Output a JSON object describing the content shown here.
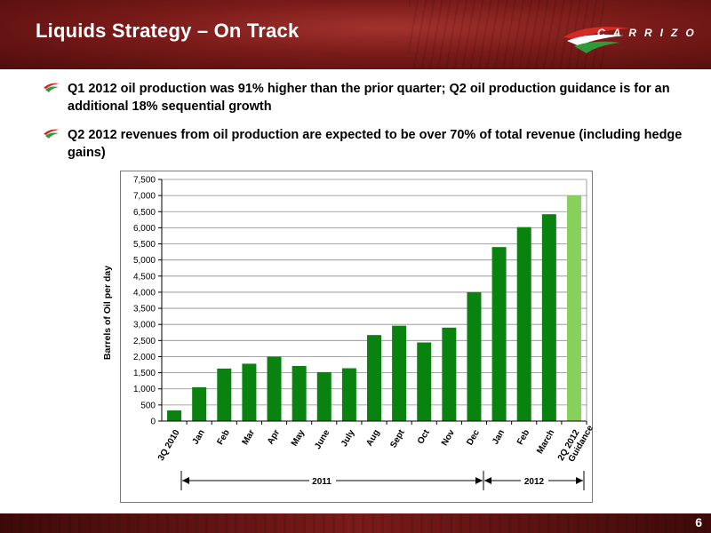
{
  "header": {
    "title": "Liquids Strategy – On Track",
    "logo_text": "CARRIZO"
  },
  "bullets": [
    "Q1 2012 oil production was 91% higher than the prior quarter; Q2 oil production guidance is for an additional 18% sequential growth",
    "Q2 2012 revenues from oil production are expected to be over 70% of total revenue (including hedge gains)"
  ],
  "colors": {
    "bar": "#0a820f",
    "bar_highlight": "#88d05c",
    "accent": "#7a1b19"
  },
  "chart_data": {
    "type": "bar",
    "ylabel": "Barrels of Oil per day",
    "ylim": [
      0,
      7500
    ],
    "yticks": [
      0,
      500,
      1000,
      1500,
      2000,
      2500,
      3000,
      3500,
      4000,
      4500,
      5000,
      5500,
      6000,
      6500,
      7000,
      7500
    ],
    "ytick_labels": [
      "0",
      "500",
      "1,000",
      "1,500",
      "2,000",
      "2,500",
      "3,000",
      "3,500",
      "4,000",
      "4,500",
      "5,000",
      "5,500",
      "6,000",
      "6,500",
      "7,000",
      "7,500"
    ],
    "categories": [
      "3Q 2010",
      "Jan",
      "Feb",
      "Mar",
      "Apr",
      "May",
      "June",
      "July",
      "Aug",
      "Sept",
      "Oct",
      "Nov",
      "Dec",
      "Jan",
      "Feb",
      "March",
      "2Q 2012 Guidance"
    ],
    "values": [
      330,
      1050,
      1630,
      1780,
      2000,
      1710,
      1520,
      1640,
      2670,
      2960,
      2440,
      2900,
      4000,
      5400,
      6020,
      6420,
      7000
    ],
    "highlight_index": 16,
    "grid": true,
    "groups": [
      {
        "label": "2011"
      },
      {
        "label": "2012"
      }
    ]
  },
  "footer": {
    "page_number": "6"
  }
}
